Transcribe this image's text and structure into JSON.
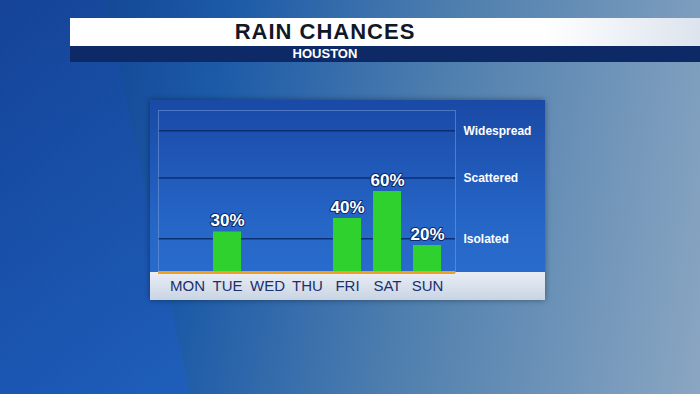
{
  "chart_data": {
    "type": "bar",
    "title": "RAIN CHANCES",
    "subtitle": "HOUSTON",
    "categories": [
      "MON",
      "TUE",
      "WED",
      "THU",
      "FRI",
      "SAT",
      "SUN"
    ],
    "values": [
      null,
      30,
      null,
      null,
      40,
      60,
      20
    ],
    "value_labels": [
      null,
      "30%",
      null,
      null,
      "40%",
      "60%",
      "20%"
    ],
    "color": "#2fd12f",
    "ylim": [
      0,
      120
    ],
    "yticks": [
      {
        "value": 25,
        "label": "Isolated"
      },
      {
        "value": 70,
        "label": "Scattered"
      },
      {
        "value": 105,
        "label": "Widespread"
      }
    ],
    "grid": true,
    "data_labels": true
  }
}
